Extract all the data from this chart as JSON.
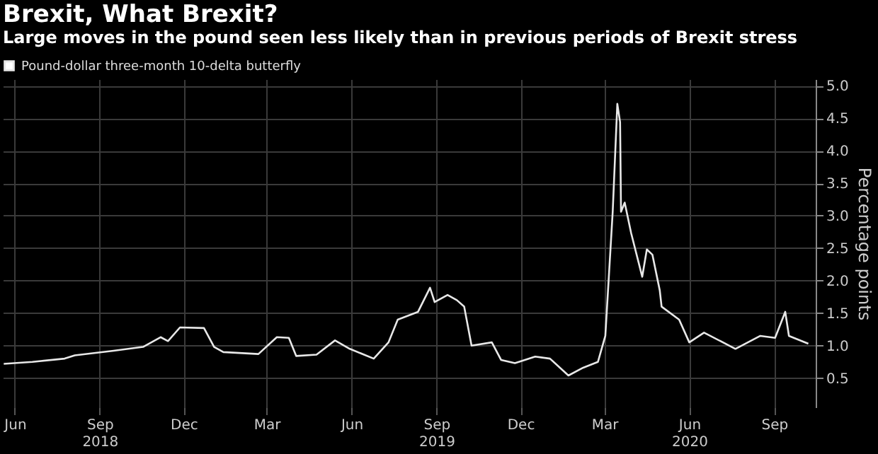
{
  "chart_data": {
    "type": "line",
    "title": "Brexit, What Brexit?",
    "subtitle": "Large moves in the pound seen less likely than in previous periods of Brexit stress",
    "ylabel": "Percentage points",
    "x": [
      "2018-05-20",
      "2018-06-20",
      "2018-07-25",
      "2018-08-05",
      "2018-09-16",
      "2018-10-18",
      "2018-11-06",
      "2018-11-14",
      "2018-11-27",
      "2018-12-23",
      "2019-01-03",
      "2019-01-13",
      "2019-02-20",
      "2019-03-12",
      "2019-03-25",
      "2019-04-02",
      "2019-04-24",
      "2019-05-14",
      "2019-05-30",
      "2019-06-25",
      "2019-07-11",
      "2019-07-21",
      "2019-08-12",
      "2019-08-25",
      "2019-08-30",
      "2019-09-13",
      "2019-09-23",
      "2019-10-01",
      "2019-10-09",
      "2019-10-31",
      "2019-11-10",
      "2019-11-25",
      "2019-12-17",
      "2020-01-02",
      "2020-01-22",
      "2020-02-07",
      "2020-02-23",
      "2020-03-02",
      "2020-03-10",
      "2020-03-15",
      "2020-03-18",
      "2020-03-19",
      "2020-03-23",
      "2020-03-30",
      "2020-04-11",
      "2020-04-16",
      "2020-04-22",
      "2020-04-30",
      "2020-05-02",
      "2020-05-21",
      "2020-06-01",
      "2020-06-17",
      "2020-07-21",
      "2020-08-17",
      "2020-09-02",
      "2020-09-13",
      "2020-09-17",
      "2020-10-08"
    ],
    "series": [
      {
        "name": "Pound-dollar three-month 10-delta butterfly",
        "color": "#e8e8e8",
        "values": [
          0.72,
          0.75,
          0.8,
          0.85,
          0.92,
          0.98,
          1.13,
          1.07,
          1.28,
          1.27,
          0.98,
          0.9,
          0.87,
          1.13,
          1.12,
          0.84,
          0.86,
          1.08,
          0.95,
          0.8,
          1.05,
          1.4,
          1.52,
          1.89,
          1.67,
          1.78,
          1.7,
          1.6,
          1.0,
          1.05,
          0.78,
          0.73,
          0.83,
          0.8,
          0.54,
          0.66,
          0.75,
          1.15,
          3.06,
          4.72,
          4.44,
          3.06,
          3.2,
          2.73,
          2.06,
          2.48,
          2.4,
          1.85,
          1.6,
          1.4,
          1.05,
          1.2,
          0.95,
          1.15,
          1.12,
          1.52,
          1.15,
          1.03
        ]
      }
    ],
    "xlim": [
      "2018-05-19",
      "2020-10-16"
    ],
    "xticks": [
      {
        "value": "2018-06-01",
        "label": "Jun"
      },
      {
        "value": "2018-09-01",
        "label": "Sep\n2018"
      },
      {
        "value": "2018-12-01",
        "label": "Dec"
      },
      {
        "value": "2019-03-01",
        "label": "Mar"
      },
      {
        "value": "2019-06-01",
        "label": "Jun"
      },
      {
        "value": "2019-09-01",
        "label": "Sep\n2019"
      },
      {
        "value": "2019-12-01",
        "label": "Dec"
      },
      {
        "value": "2020-03-01",
        "label": "Mar"
      },
      {
        "value": "2020-06-01",
        "label": "Jun\n2020"
      },
      {
        "value": "2020-09-01",
        "label": "Sep"
      }
    ],
    "ylim": [
      0.05,
      5.1
    ],
    "yticks": [
      {
        "value": 0.5,
        "label": "0.5"
      },
      {
        "value": 1,
        "label": "1.0"
      },
      {
        "value": 1.5,
        "label": "1.5"
      },
      {
        "value": 2,
        "label": "2.0"
      },
      {
        "value": 2.5,
        "label": "2.5"
      },
      {
        "value": 3,
        "label": "3.0"
      },
      {
        "value": 3.5,
        "label": "3.5"
      },
      {
        "value": 4,
        "label": "4.0"
      },
      {
        "value": 4.5,
        "label": "4.5"
      },
      {
        "value": 5,
        "label": "5.0"
      }
    ],
    "grid": true,
    "legend": "top left",
    "line_style": "solid",
    "marker": "none"
  }
}
